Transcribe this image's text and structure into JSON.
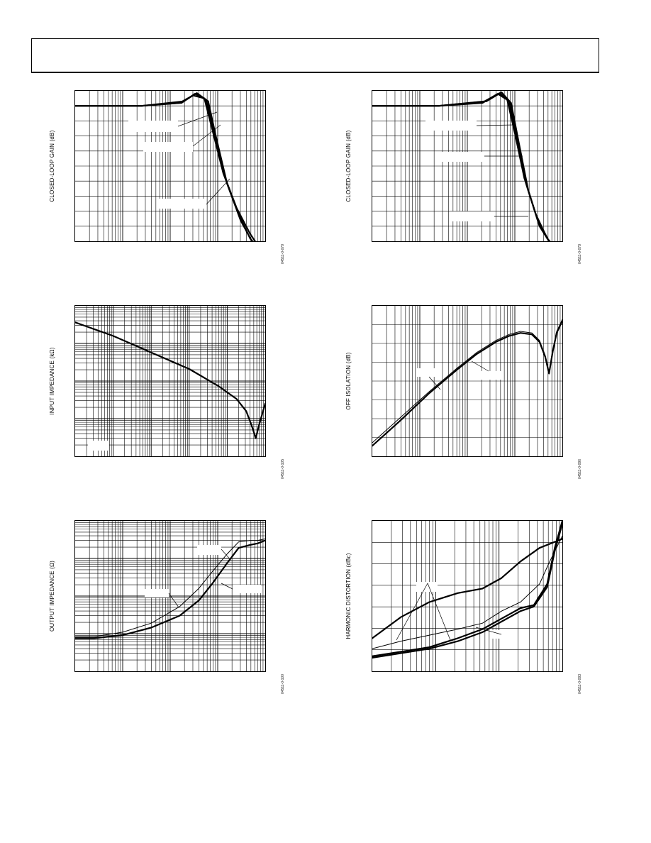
{
  "header": {},
  "chart_data": [
    {
      "id": "cl-gain-left",
      "type": "line",
      "ylabel": "CLOSED-LOOP GAIN (dB)",
      "figure_code": "04511-0-079",
      "x_scale": "log",
      "grid": true,
      "series": [
        {
          "x": [
            0.0,
            0.35,
            0.55,
            0.62,
            0.68,
            0.72,
            0.78,
            0.85,
            0.92,
            1.0
          ],
          "y": [
            0.1,
            0.1,
            0.08,
            0.03,
            0.05,
            0.25,
            0.55,
            0.78,
            0.95,
            1.1
          ]
        },
        {
          "x": [
            0.0,
            0.35,
            0.56,
            0.63,
            0.69,
            0.73,
            0.79,
            0.86,
            0.92,
            1.0
          ],
          "y": [
            0.1,
            0.1,
            0.08,
            0.02,
            0.06,
            0.27,
            0.58,
            0.82,
            0.98,
            1.1
          ]
        },
        {
          "x": [
            0.0,
            0.35,
            0.57,
            0.64,
            0.7,
            0.74,
            0.8,
            0.87,
            0.93,
            1.0
          ],
          "y": [
            0.1,
            0.1,
            0.07,
            0.015,
            0.07,
            0.3,
            0.62,
            0.86,
            1.0,
            1.1
          ]
        }
      ]
    },
    {
      "id": "cl-gain-right",
      "type": "line",
      "ylabel": "CLOSED-LOOP GAIN (dB)",
      "figure_code": "04511-0-079",
      "x_scale": "log",
      "grid": true,
      "series": [
        {
          "x": [
            0.0,
            0.35,
            0.58,
            0.66,
            0.71,
            0.75,
            0.8,
            0.86,
            0.92,
            1.0
          ],
          "y": [
            0.1,
            0.1,
            0.08,
            0.02,
            0.06,
            0.28,
            0.58,
            0.82,
            0.98,
            1.1
          ]
        },
        {
          "x": [
            0.0,
            0.35,
            0.59,
            0.67,
            0.72,
            0.76,
            0.81,
            0.87,
            0.93,
            1.0
          ],
          "y": [
            0.1,
            0.1,
            0.07,
            0.015,
            0.07,
            0.31,
            0.62,
            0.86,
            1.0,
            1.1
          ]
        },
        {
          "x": [
            0.0,
            0.35,
            0.6,
            0.68,
            0.73,
            0.77,
            0.82,
            0.88,
            0.94,
            1.0
          ],
          "y": [
            0.1,
            0.1,
            0.07,
            0.01,
            0.08,
            0.34,
            0.66,
            0.9,
            1.02,
            1.1
          ]
        }
      ]
    },
    {
      "id": "input-impedance",
      "type": "line",
      "ylabel": "INPUT IMPEDANCE (kΩ)",
      "figure_code": "04511-0-105",
      "x_scale": "log",
      "y_scale": "log",
      "grid": true,
      "series": [
        {
          "x": [
            0.0,
            0.2,
            0.4,
            0.6,
            0.75,
            0.85,
            0.9,
            0.93,
            0.95,
            0.97,
            1.0
          ],
          "y": [
            0.11,
            0.2,
            0.31,
            0.42,
            0.53,
            0.62,
            0.7,
            0.8,
            0.88,
            0.78,
            0.65
          ]
        }
      ]
    },
    {
      "id": "off-isolation",
      "type": "line",
      "ylabel": "OFF ISOLATION (dB)",
      "figure_code": "04511-0-096",
      "x_scale": "log",
      "grid": true,
      "series": [
        {
          "x": [
            0.0,
            0.15,
            0.3,
            0.45,
            0.55,
            0.65,
            0.72,
            0.78,
            0.84,
            0.88,
            0.91,
            0.93,
            0.95,
            0.97,
            1.0
          ],
          "y": [
            0.93,
            0.76,
            0.58,
            0.42,
            0.32,
            0.24,
            0.2,
            0.18,
            0.19,
            0.24,
            0.34,
            0.45,
            0.3,
            0.18,
            0.1
          ]
        },
        {
          "x": [
            0.0,
            0.15,
            0.3,
            0.45,
            0.55,
            0.65,
            0.72,
            0.78,
            0.84,
            0.88,
            0.91,
            0.93,
            0.95,
            0.97,
            1.0
          ],
          "y": [
            0.91,
            0.74,
            0.57,
            0.41,
            0.31,
            0.23,
            0.19,
            0.17,
            0.18,
            0.23,
            0.33,
            0.44,
            0.29,
            0.17,
            0.09
          ]
        }
      ]
    },
    {
      "id": "output-impedance",
      "type": "line",
      "ylabel": "OUTPUT IMPEDANCE (Ω)",
      "figure_code": "04511-0-100",
      "x_scale": "log",
      "y_scale": "log",
      "grid": true,
      "series": [
        {
          "x": [
            0.0,
            0.1,
            0.25,
            0.4,
            0.55,
            0.65,
            0.72,
            0.8,
            0.86,
            0.92,
            0.96,
            1.0
          ],
          "y": [
            0.78,
            0.78,
            0.76,
            0.71,
            0.63,
            0.53,
            0.42,
            0.28,
            0.18,
            0.16,
            0.15,
            0.13
          ]
        },
        {
          "x": [
            0.0,
            0.1,
            0.25,
            0.4,
            0.55,
            0.65,
            0.72,
            0.8,
            0.86,
            0.92,
            0.96,
            1.0
          ],
          "y": [
            0.77,
            0.77,
            0.74,
            0.68,
            0.57,
            0.45,
            0.34,
            0.22,
            0.14,
            0.13,
            0.13,
            0.12
          ]
        }
      ]
    },
    {
      "id": "harmonic-distortion",
      "type": "line",
      "ylabel": "HARMONIC DISTORTION (dBc)",
      "figure_code": "04511-0-093",
      "x_scale": "log",
      "grid": true,
      "series": [
        {
          "x": [
            0.0,
            0.15,
            0.3,
            0.45,
            0.58,
            0.68,
            0.78,
            0.88,
            1.0
          ],
          "y": [
            0.78,
            0.64,
            0.54,
            0.48,
            0.45,
            0.38,
            0.27,
            0.18,
            0.12
          ]
        },
        {
          "x": [
            0.0,
            0.15,
            0.3,
            0.45,
            0.58,
            0.68,
            0.78,
            0.88,
            0.93,
            1.0
          ],
          "y": [
            0.85,
            0.8,
            0.76,
            0.72,
            0.68,
            0.6,
            0.54,
            0.42,
            0.28,
            0.1
          ]
        },
        {
          "x": [
            0.0,
            0.15,
            0.3,
            0.45,
            0.58,
            0.68,
            0.78,
            0.85,
            0.92,
            0.96,
            1.0
          ],
          "y": [
            0.9,
            0.87,
            0.84,
            0.78,
            0.72,
            0.65,
            0.58,
            0.56,
            0.42,
            0.18,
            0.0
          ]
        },
        {
          "x": [
            0.0,
            0.15,
            0.3,
            0.45,
            0.58,
            0.68,
            0.78,
            0.85,
            0.92,
            0.96,
            1.0
          ],
          "y": [
            0.91,
            0.88,
            0.85,
            0.8,
            0.74,
            0.67,
            0.6,
            0.57,
            0.44,
            0.2,
            0.02
          ]
        }
      ]
    }
  ]
}
